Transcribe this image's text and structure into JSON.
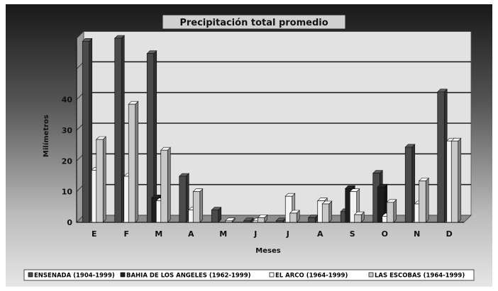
{
  "chart_data": {
    "type": "bar",
    "title": "Precipitación total promedio",
    "xlabel": "Meses",
    "ylabel": "Milímetros",
    "categories": [
      "E",
      "F",
      "M",
      "A",
      "M",
      "J",
      "J",
      "A",
      "S",
      "O",
      "N",
      "D"
    ],
    "ylim": [
      0,
      60
    ],
    "yticks": [
      0,
      10,
      20,
      30,
      40
    ],
    "grid": true,
    "legend_position": "bottom",
    "series": [
      {
        "name": "ENSENADA (1904-1999)",
        "color": "#4a4a4a",
        "values": [
          59,
          60,
          55,
          15,
          4,
          0.5,
          0.5,
          1.5,
          3.5,
          16,
          24.5,
          42.5
        ]
      },
      {
        "name": "BAHIA DE LOS ANGELES (1962-1999)",
        "color": "#1e1e1e",
        "values": [
          0,
          0,
          8,
          0,
          0,
          0,
          0,
          0,
          11,
          11.5,
          0,
          0
        ]
      },
      {
        "name": "EL ARCO (1964-1999)",
        "color": "#f4f4f4",
        "values": [
          17,
          15,
          7,
          4,
          0,
          0.5,
          8.5,
          7,
          10,
          2,
          6,
          26.5
        ]
      },
      {
        "name": "LAS ESCOBAS (1964-1999)",
        "color": "#c8c8c8",
        "values": [
          27,
          38.5,
          23.5,
          10,
          0.5,
          1.5,
          3,
          6,
          2.5,
          6.5,
          13.5,
          26.5
        ]
      }
    ]
  }
}
